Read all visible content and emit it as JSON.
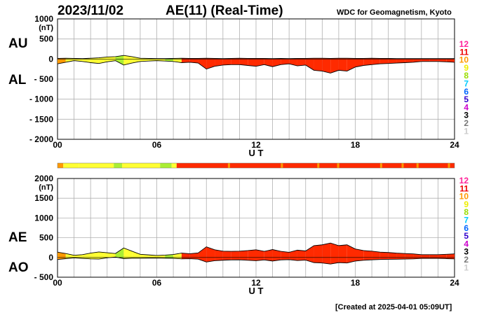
{
  "header": {
    "date": "2023/11/02",
    "title": "AE(11) (Real-Time)",
    "source": "WDC for Geomagnetism, Kyoto"
  },
  "footer": {
    "created": "[Created at 2025-04-01 05:09UT]"
  },
  "colors": {
    "grid": "#b0b0b0",
    "fill_quiet": "#ffff33",
    "fill_mid": "#aaee33",
    "fill_active": "#ff2a00",
    "fill_orange": "#ff9900"
  },
  "legend": {
    "levels": [
      {
        "label": "12",
        "color": "#ff2299"
      },
      {
        "label": "11",
        "color": "#ee0000"
      },
      {
        "label": "10",
        "color": "#ff9900"
      },
      {
        "label": "9",
        "color": "#eeee00"
      },
      {
        "label": "8",
        "color": "#99dd00"
      },
      {
        "label": "7",
        "color": "#00ccff"
      },
      {
        "label": "6",
        "color": "#0066ff"
      },
      {
        "label": "5",
        "color": "#3300cc"
      },
      {
        "label": "4",
        "color": "#cc00cc"
      },
      {
        "label": "3",
        "color": "#000000"
      },
      {
        "label": "2",
        "color": "#777777"
      },
      {
        "label": "1",
        "color": "#cccccc"
      }
    ]
  },
  "chart_data": [
    {
      "type": "area",
      "panel": "AU-AL",
      "series_labels": [
        "AU",
        "AL"
      ],
      "y_unit": "(nT)",
      "ylim": [
        -2000,
        1000
      ],
      "yticks": [
        "1000",
        "500",
        "0",
        "- 500",
        "- 1000",
        "- 1500",
        "- 2000"
      ],
      "ytick_values": [
        1000,
        500,
        0,
        -500,
        -1000,
        -1500,
        -2000
      ],
      "xticks": [
        "00",
        "06",
        "12",
        "18",
        "24"
      ],
      "xlabel": "U T",
      "xlim": [
        0,
        24
      ],
      "grid": true,
      "hours": [
        0,
        0.5,
        1,
        1.5,
        2,
        2.5,
        3,
        3.5,
        4,
        4.5,
        5,
        5.5,
        6,
        6.5,
        7,
        7.5,
        8,
        8.5,
        9,
        9.5,
        10,
        10.5,
        11,
        11.5,
        12,
        12.5,
        13,
        13.5,
        14,
        14.5,
        15,
        15.5,
        16,
        16.5,
        17,
        17.5,
        18,
        18.5,
        19,
        19.5,
        20,
        20.5,
        21,
        21.5,
        22,
        22.5,
        23,
        23.5,
        24
      ],
      "au": [
        15,
        20,
        15,
        10,
        20,
        30,
        50,
        60,
        90,
        60,
        20,
        15,
        10,
        10,
        15,
        20,
        15,
        15,
        20,
        15,
        10,
        15,
        20,
        15,
        15,
        15,
        10,
        15,
        10,
        15,
        15,
        20,
        20,
        15,
        20,
        20,
        15,
        15,
        20,
        15,
        15,
        10,
        10,
        10,
        10,
        10,
        10,
        10,
        10
      ],
      "al": [
        -120,
        -80,
        -40,
        -60,
        -90,
        -110,
        -70,
        -40,
        -150,
        -100,
        -60,
        -50,
        -40,
        -50,
        -60,
        -90,
        -80,
        -100,
        -250,
        -180,
        -150,
        -140,
        -140,
        -160,
        -180,
        -140,
        -190,
        -140,
        -120,
        -170,
        -150,
        -280,
        -300,
        -350,
        -280,
        -300,
        -200,
        -160,
        -140,
        -120,
        -110,
        -100,
        -90,
        -80,
        -60,
        -60,
        -60,
        -70,
        -80
      ]
    },
    {
      "type": "area",
      "panel": "AE-AO",
      "series_labels": [
        "AE",
        "AO"
      ],
      "y_unit": "(nT)",
      "ylim": [
        -500,
        2000
      ],
      "yticks": [
        "2000",
        "1500",
        "1000",
        "500",
        "0",
        "- 500"
      ],
      "ytick_values": [
        2000,
        1500,
        1000,
        500,
        0,
        -500
      ],
      "xticks": [
        "00",
        "06",
        "12",
        "18",
        "24"
      ],
      "xlabel": "U T",
      "xlim": [
        0,
        24
      ],
      "grid": true,
      "hours": [
        0,
        0.5,
        1,
        1.5,
        2,
        2.5,
        3,
        3.5,
        4,
        4.5,
        5,
        5.5,
        6,
        6.5,
        7,
        7.5,
        8,
        8.5,
        9,
        9.5,
        10,
        10.5,
        11,
        11.5,
        12,
        12.5,
        13,
        13.5,
        14,
        14.5,
        15,
        15.5,
        16,
        16.5,
        17,
        17.5,
        18,
        18.5,
        19,
        19.5,
        20,
        20.5,
        21,
        21.5,
        22,
        22.5,
        23,
        23.5,
        24
      ],
      "ae": [
        135,
        100,
        55,
        70,
        110,
        140,
        120,
        100,
        240,
        160,
        80,
        65,
        50,
        60,
        75,
        110,
        95,
        115,
        270,
        195,
        160,
        155,
        160,
        175,
        195,
        155,
        200,
        155,
        130,
        185,
        165,
        300,
        320,
        365,
        300,
        320,
        215,
        175,
        160,
        135,
        125,
        110,
        100,
        90,
        70,
        70,
        70,
        80,
        90
      ],
      "ao": [
        -52,
        -30,
        -12,
        -25,
        -35,
        -40,
        -10,
        10,
        -30,
        -20,
        -20,
        -17,
        -15,
        -20,
        -22,
        -35,
        -32,
        -42,
        -115,
        -82,
        -70,
        -62,
        -60,
        -72,
        -82,
        -62,
        -90,
        -62,
        -55,
        -77,
        -67,
        -130,
        -140,
        -167,
        -130,
        -140,
        -92,
        -72,
        -60,
        -52,
        -47,
        -45,
        -40,
        -35,
        -25,
        -25,
        -25,
        -30,
        -35
      ]
    }
  ],
  "activity_bar": {
    "segments": [
      {
        "from": 0,
        "to": 0.35,
        "level": "orange"
      },
      {
        "from": 0.35,
        "to": 1.3,
        "level": "quiet"
      },
      {
        "from": 1.3,
        "to": 3.4,
        "level": "quiet"
      },
      {
        "from": 3.4,
        "to": 3.9,
        "level": "mid"
      },
      {
        "from": 3.9,
        "to": 6.2,
        "level": "quiet"
      },
      {
        "from": 6.2,
        "to": 6.9,
        "level": "mid"
      },
      {
        "from": 6.9,
        "to": 7.2,
        "level": "quiet"
      },
      {
        "from": 7.2,
        "to": 24,
        "level": "active"
      }
    ],
    "accents": [
      10.3,
      13.5,
      15.7,
      16.9,
      19.5,
      20.8,
      21.7,
      23.6
    ]
  }
}
